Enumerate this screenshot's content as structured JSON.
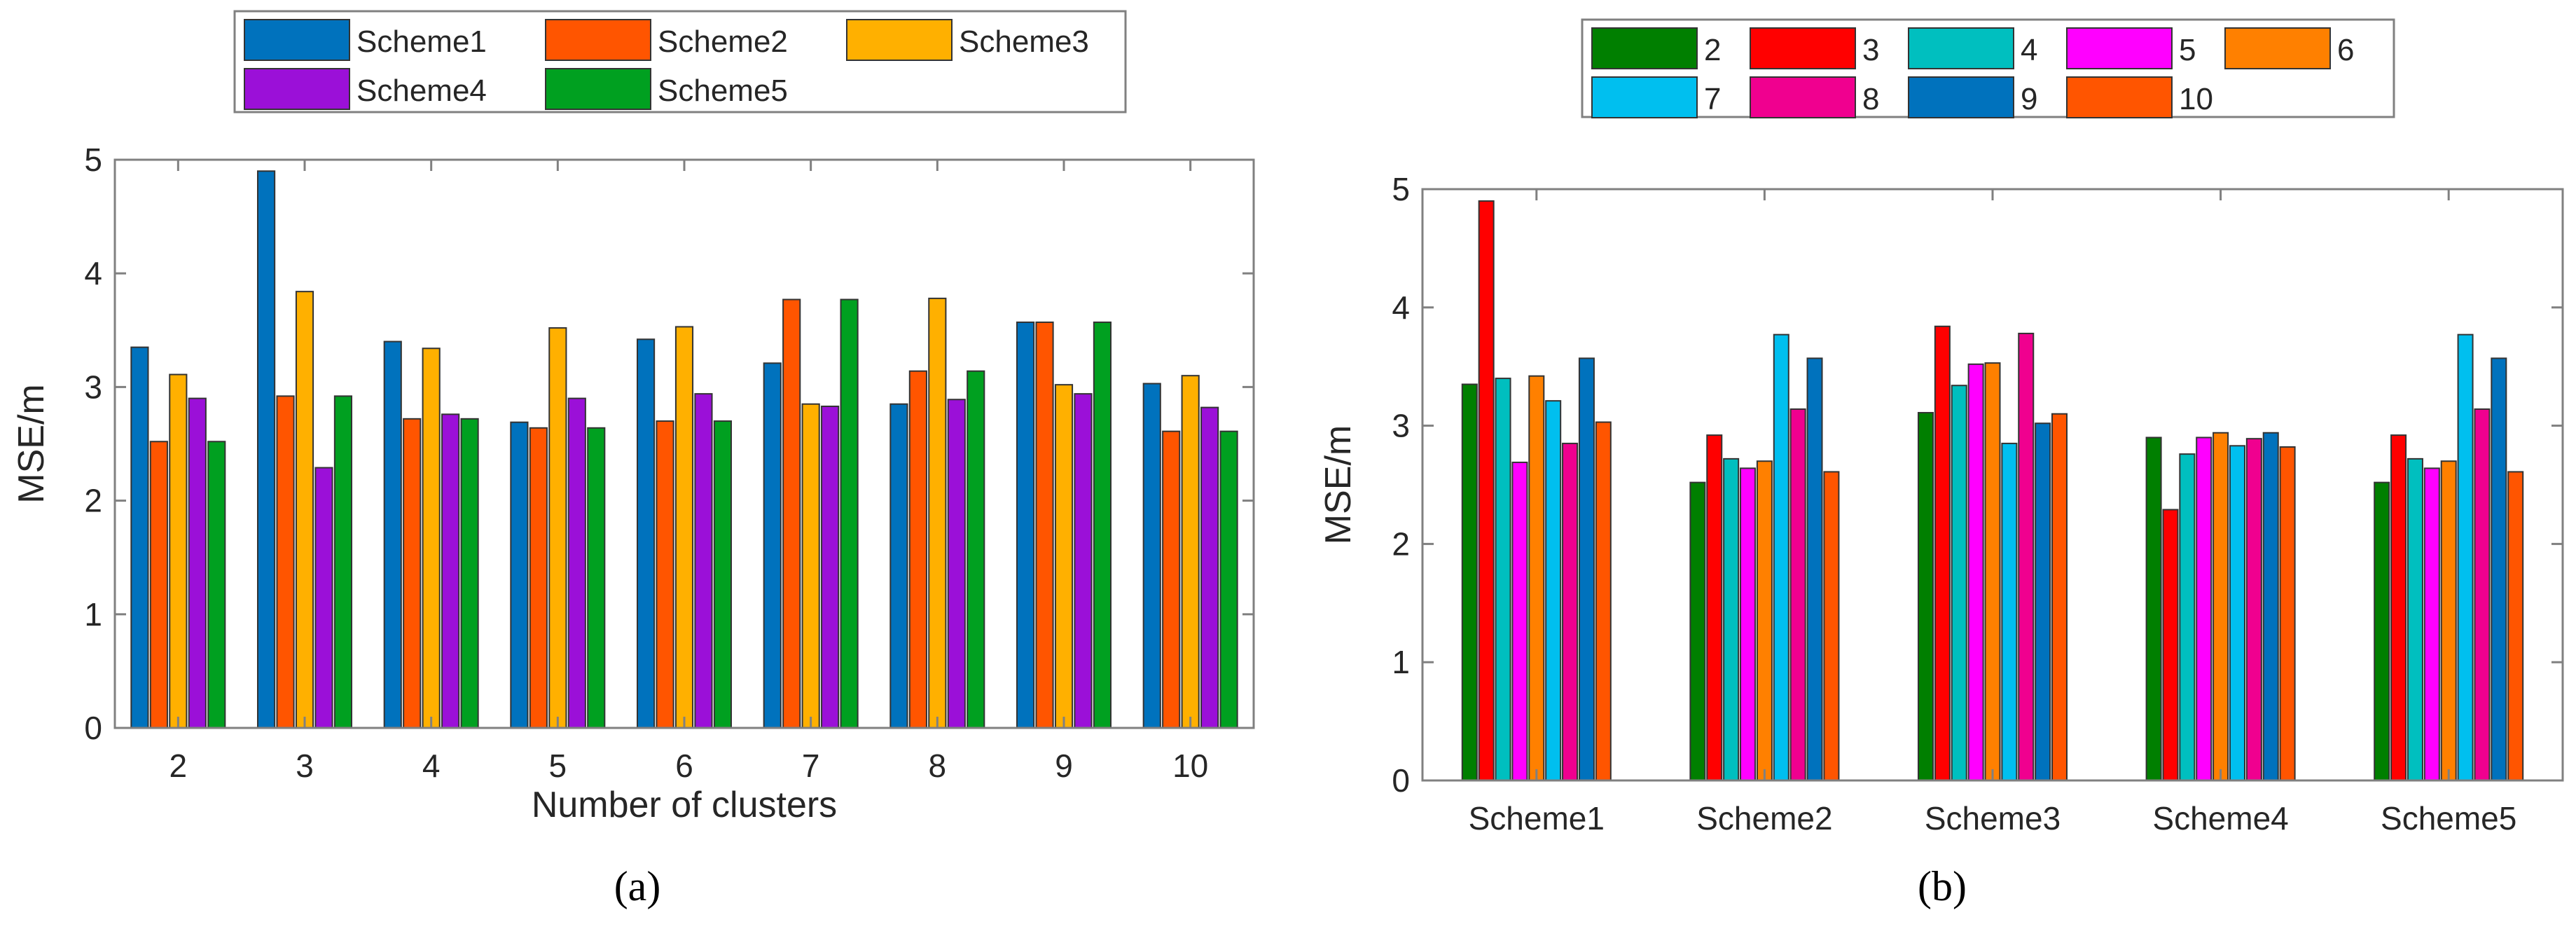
{
  "chart_data": [
    {
      "type": "bar",
      "panel_label": "(a)",
      "title": "",
      "xlabel": "Number of clusters",
      "ylabel": "MSE/m",
      "ylim": [
        0,
        5
      ],
      "yticks": [
        "0",
        "1",
        "2",
        "3",
        "4",
        "5"
      ],
      "categories": [
        "2",
        "3",
        "4",
        "5",
        "6",
        "7",
        "8",
        "9",
        "10"
      ],
      "legend_position": "top-center",
      "series": [
        {
          "name": "Scheme1",
          "color": "#0072BD",
          "values": [
            3.35,
            4.9,
            3.4,
            2.69,
            3.42,
            3.21,
            2.85,
            3.57,
            3.03
          ]
        },
        {
          "name": "Scheme2",
          "color": "#FF5500",
          "values": [
            2.52,
            2.92,
            2.72,
            2.64,
            2.7,
            3.77,
            3.14,
            3.57,
            2.61
          ]
        },
        {
          "name": "Scheme3",
          "color": "#FFB000",
          "values": [
            3.11,
            3.84,
            3.34,
            3.52,
            3.53,
            2.85,
            3.78,
            3.02,
            3.1
          ]
        },
        {
          "name": "Scheme4",
          "color": "#9B10D8",
          "values": [
            2.9,
            2.29,
            2.76,
            2.9,
            2.94,
            2.83,
            2.89,
            2.94,
            2.82
          ]
        },
        {
          "name": "Scheme5",
          "color": "#00A020",
          "values": [
            2.52,
            2.92,
            2.72,
            2.64,
            2.7,
            3.77,
            3.14,
            3.57,
            2.61
          ]
        }
      ]
    },
    {
      "type": "bar",
      "panel_label": "(b)",
      "title": "",
      "xlabel": "",
      "ylabel": "MSE/m",
      "ylim": [
        0,
        5
      ],
      "yticks": [
        "0",
        "1",
        "2",
        "3",
        "4",
        "5"
      ],
      "categories": [
        "Scheme1",
        "Scheme2",
        "Scheme3",
        "Scheme4",
        "Scheme5"
      ],
      "legend_position": "top-center",
      "series": [
        {
          "name": "2",
          "color": "#007F00",
          "values": [
            3.35,
            2.52,
            3.11,
            2.9,
            2.52
          ]
        },
        {
          "name": "3",
          "color": "#FF0000",
          "values": [
            4.9,
            2.92,
            3.84,
            2.29,
            2.92
          ]
        },
        {
          "name": "4",
          "color": "#00BFBF",
          "values": [
            3.4,
            2.72,
            3.34,
            2.76,
            2.72
          ]
        },
        {
          "name": "5",
          "color": "#FF00FF",
          "values": [
            2.69,
            2.64,
            3.52,
            2.9,
            2.64
          ]
        },
        {
          "name": "6",
          "color": "#FF8000",
          "values": [
            3.42,
            2.7,
            3.53,
            2.94,
            2.7
          ]
        },
        {
          "name": "7",
          "color": "#00BFEF",
          "values": [
            3.21,
            3.77,
            2.85,
            2.83,
            3.77
          ]
        },
        {
          "name": "8",
          "color": "#F0008F",
          "values": [
            2.85,
            3.14,
            3.78,
            2.89,
            3.14
          ]
        },
        {
          "name": "9",
          "color": "#0072BD",
          "values": [
            3.57,
            3.57,
            3.02,
            2.94,
            3.57
          ]
        },
        {
          "name": "10",
          "color": "#FF5500",
          "values": [
            3.03,
            2.61,
            3.1,
            2.82,
            2.61
          ]
        }
      ]
    }
  ]
}
